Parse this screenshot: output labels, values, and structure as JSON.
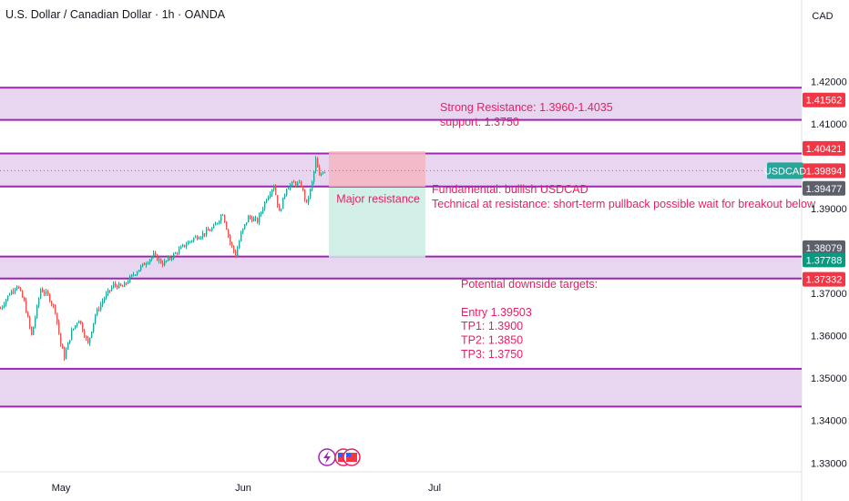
{
  "header": {
    "title": "U.S. Dollar / Canadian Dollar · 1h · OANDA",
    "currency_button": "CAD"
  },
  "chart_data": {
    "type": "candlestick",
    "symbol": "USDCAD",
    "x_ticks": [
      "May",
      "Jun",
      "Jul"
    ],
    "y_ticks": [
      "1.42000",
      "1.41000",
      "1.39000",
      "1.37000",
      "1.36000",
      "1.35000",
      "1.34000",
      "1.33000"
    ],
    "ylim": [
      1.3292,
      1.4263
    ],
    "zones": [
      {
        "low": 1.4109,
        "high": 1.4185
      },
      {
        "low": 1.3952,
        "high": 1.403
      },
      {
        "low": 1.3735,
        "high": 1.3787
      },
      {
        "low": 1.3433,
        "high": 1.3522
      }
    ],
    "position": {
      "entry": 1.39503,
      "stop": 1.4035,
      "target": 1.3785,
      "label": "Major resistance"
    },
    "price_path": [
      [
        0,
        1.3665
      ],
      [
        10,
        1.37
      ],
      [
        18,
        1.372
      ],
      [
        26,
        1.368
      ],
      [
        34,
        1.36
      ],
      [
        44,
        1.371
      ],
      [
        52,
        1.3695
      ],
      [
        60,
        1.366
      ],
      [
        66,
        1.358
      ],
      [
        70,
        1.355
      ],
      [
        78,
        1.361
      ],
      [
        86,
        1.364
      ],
      [
        96,
        1.358
      ],
      [
        104,
        1.365
      ],
      [
        114,
        1.369
      ],
      [
        124,
        1.372
      ],
      [
        134,
        1.3715
      ],
      [
        146,
        1.3745
      ],
      [
        158,
        1.377
      ],
      [
        168,
        1.379
      ],
      [
        178,
        1.377
      ],
      [
        190,
        1.379
      ],
      [
        200,
        1.381
      ],
      [
        212,
        1.383
      ],
      [
        222,
        1.384
      ],
      [
        234,
        1.3855
      ],
      [
        244,
        1.389
      ],
      [
        252,
        1.382
      ],
      [
        258,
        1.379
      ],
      [
        264,
        1.384
      ],
      [
        272,
        1.388
      ],
      [
        282,
        1.387
      ],
      [
        292,
        1.3925
      ],
      [
        300,
        1.3955
      ],
      [
        306,
        1.389
      ],
      [
        314,
        1.395
      ],
      [
        322,
        1.396
      ],
      [
        330,
        1.3955
      ],
      [
        336,
        1.391
      ],
      [
        342,
        1.396
      ],
      [
        346,
        1.4015
      ],
      [
        350,
        1.3975
      ],
      [
        354,
        1.399
      ],
      [
        358,
        1.3985
      ]
    ],
    "price_labels": [
      {
        "text": "1.41562",
        "value": 1.41562,
        "color": "#f23645"
      },
      {
        "text": "1.40421",
        "value": 1.40421,
        "color": "#f23645"
      },
      {
        "text": "1.39894",
        "value": 1.39894,
        "color": "#f23645"
      },
      {
        "text": "1.39477",
        "value": 1.39477,
        "color": "#5d606b"
      },
      {
        "text": "1.38079",
        "value": 1.38079,
        "color": "#5d606b"
      },
      {
        "text": "1.37788",
        "value": 1.37788,
        "color": "#089981"
      },
      {
        "text": "1.37332",
        "value": 1.37332,
        "color": "#f23645"
      }
    ],
    "symbol_tag": {
      "text": "USDCAD",
      "value": 1.39894,
      "color": "#26a69a"
    },
    "annotations": {
      "resistance": [
        "Strong Resistance: 1.3960-1.4035",
        "support: 1.3750"
      ],
      "fundamental": [
        "Fundamental:  bullish USDCAD",
        "Technical at resistance: short-term pullback possible wait for breakout below"
      ],
      "targets": [
        "Potential downside targets:",
        "",
        "Entry  1.39503",
        "TP1: 1.3900",
        "TP2: 1.3850",
        "TP3: 1.3750"
      ]
    },
    "colors": {
      "zone_fill": "#e8d5f0",
      "zone_line": "#9c27b0",
      "up": "#26a69a",
      "down": "#ef5350",
      "note": "#e91e63",
      "stop_fill": "#f5b5c3",
      "target_fill": "#cdeee4"
    }
  }
}
